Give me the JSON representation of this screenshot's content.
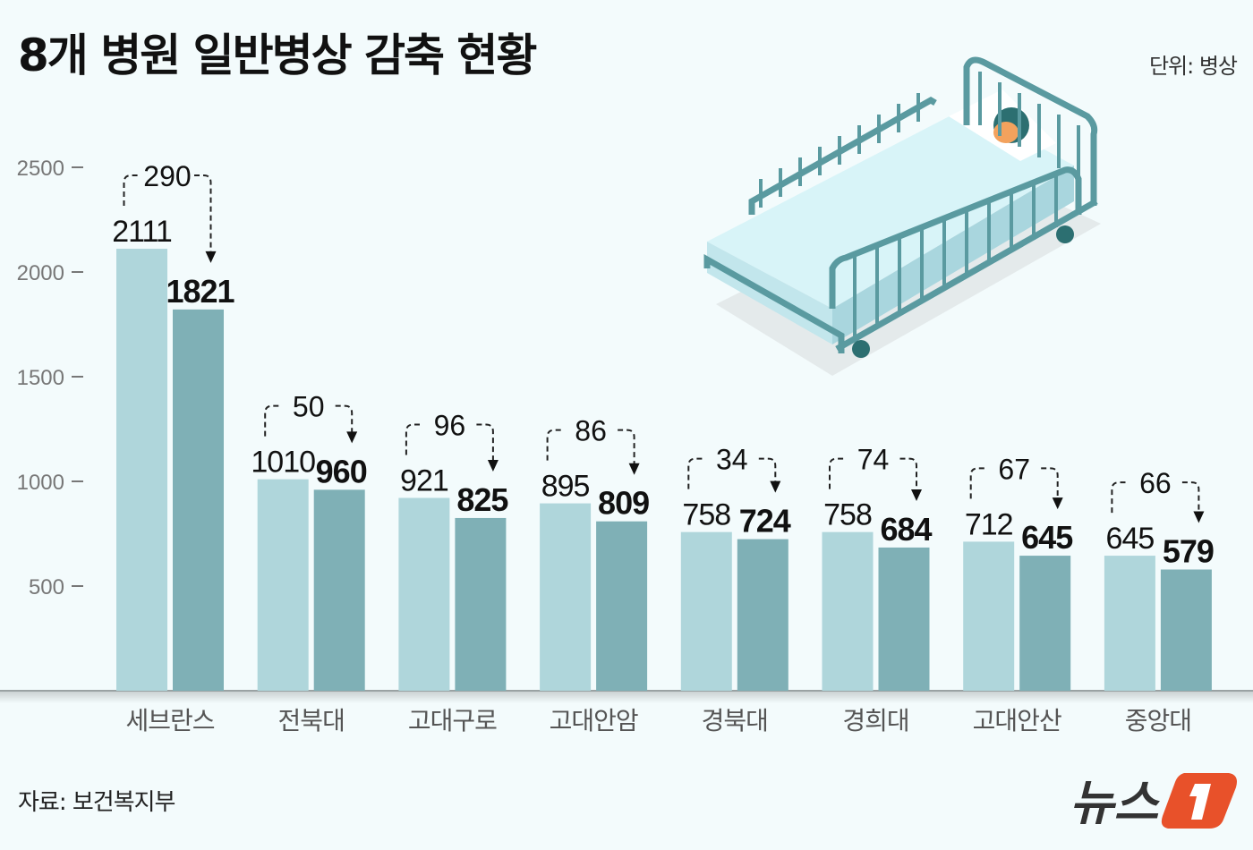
{
  "header": {
    "title": "8개 병원 일반병상 감축 현황",
    "unit": "단위: 병상"
  },
  "footer": {
    "source": "자료: 보건복지부",
    "logo_text": "뉴스1"
  },
  "colors": {
    "background": "#f3fbfc",
    "before_bar": "#afd6db",
    "after_bar": "#7fb0b6",
    "logo_accent": "#e8512a"
  },
  "chart_data": {
    "type": "bar",
    "title": "8개 병원 일반병상 감축 현황",
    "ylabel": "",
    "xlabel": "",
    "ylim": [
      0,
      2500
    ],
    "yticks": [
      500,
      1000,
      1500,
      2000,
      2500
    ],
    "grid": false,
    "categories": [
      "세브란스",
      "전북대",
      "고대구로",
      "고대안암",
      "경북대",
      "경희대",
      "고대안산",
      "중앙대"
    ],
    "series": [
      {
        "values": [
          2111,
          1010,
          921,
          895,
          758,
          758,
          712,
          645
        ]
      },
      {
        "values": [
          1821,
          960,
          825,
          809,
          724,
          684,
          645,
          579
        ]
      }
    ],
    "annotations": [
      290,
      50,
      96,
      86,
      34,
      74,
      67,
      66
    ]
  }
}
